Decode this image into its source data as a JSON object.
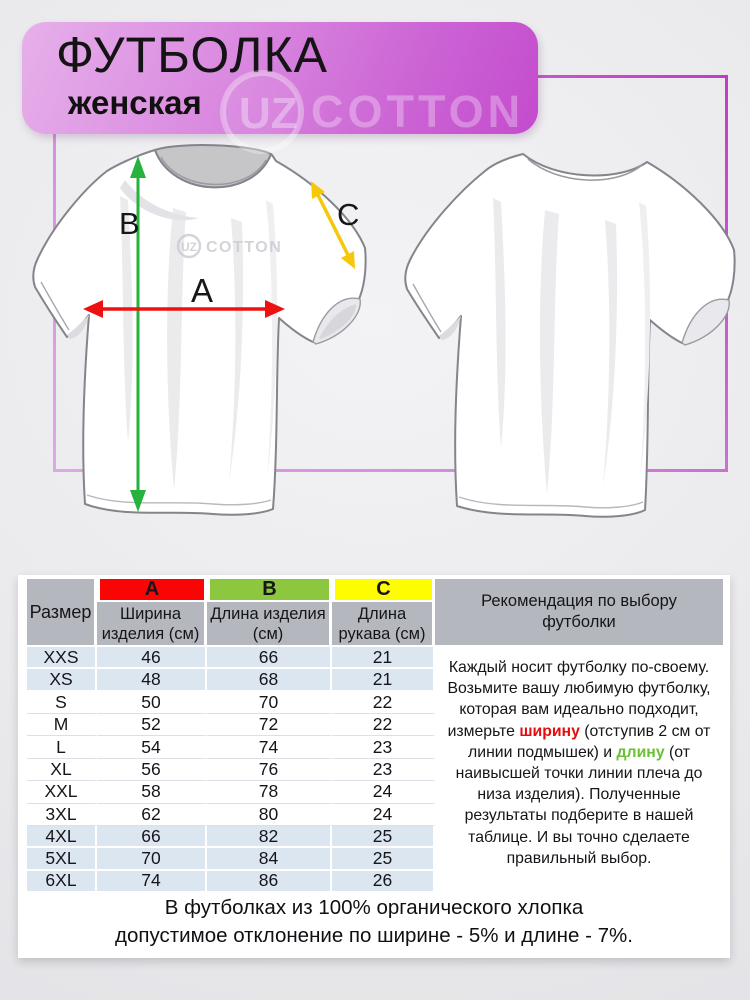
{
  "header": {
    "title": "ФУТБОЛКА",
    "subtitle": "женская",
    "brand_circle_text": "UZ",
    "brand": "COTTON"
  },
  "diagram": {
    "labels": {
      "a": "A",
      "b": "B",
      "c": "C"
    },
    "colors": {
      "a": "#ed1111",
      "b": "#25b23d",
      "c": "#f6c808",
      "frame": "#c44ccb"
    },
    "chest_logo_circle": "UZ",
    "chest_logo_text": "COTTON"
  },
  "table": {
    "size_header": "Размер",
    "header_bg": "#b4b8be",
    "row_shade_color": "#dce6f1",
    "columns": [
      {
        "key": "A",
        "label": "Ширина изделия (см)",
        "color": "#fa0505"
      },
      {
        "key": "B",
        "label": "Длина изделия (см)",
        "color": "#8dc63f"
      },
      {
        "key": "C",
        "label": "Длина рукава (см)",
        "color": "#fdfd00"
      }
    ],
    "rows": [
      {
        "size": "XXS",
        "a": 46,
        "b": 66,
        "c": 21,
        "shaded": true
      },
      {
        "size": "XS",
        "a": 48,
        "b": 68,
        "c": 21,
        "shaded": true
      },
      {
        "size": "S",
        "a": 50,
        "b": 70,
        "c": 22,
        "shaded": false
      },
      {
        "size": "M",
        "a": 52,
        "b": 72,
        "c": 22,
        "shaded": false
      },
      {
        "size": "L",
        "a": 54,
        "b": 74,
        "c": 23,
        "shaded": false
      },
      {
        "size": "XL",
        "a": 56,
        "b": 76,
        "c": 23,
        "shaded": false
      },
      {
        "size": "XXL",
        "a": 58,
        "b": 78,
        "c": 24,
        "shaded": false
      },
      {
        "size": "3XL",
        "a": 62,
        "b": 80,
        "c": 24,
        "shaded": false
      },
      {
        "size": "4XL",
        "a": 66,
        "b": 82,
        "c": 25,
        "shaded": true
      },
      {
        "size": "5XL",
        "a": 70,
        "b": 84,
        "c": 25,
        "shaded": true
      },
      {
        "size": "6XL",
        "a": 74,
        "b": 86,
        "c": 26,
        "shaded": true
      }
    ],
    "recommendation": {
      "header": "Рекомендация по выбору футболки",
      "text_1": "Каждый носит футболку по-своему. Возьмите вашу любимую футболку, которая вам идеально подходит, измерьте ",
      "highlight_width": "ширину",
      "highlight_width_color": "#e60c0c",
      "text_2": " (отступив 2 см от линии подмышек) и ",
      "highlight_length": "длину",
      "highlight_length_color": "#6cc033",
      "text_3": " (от наивысшей точки линии плеча  до низа изделия). Полученные результаты подберите в нашей таблице. И вы точно сделаете правильный выбор."
    }
  },
  "footer": {
    "line1": "В футболках из 100% органического хлопка",
    "line2": "допустимое отклонение по ширине - 5% и длине - 7%."
  }
}
